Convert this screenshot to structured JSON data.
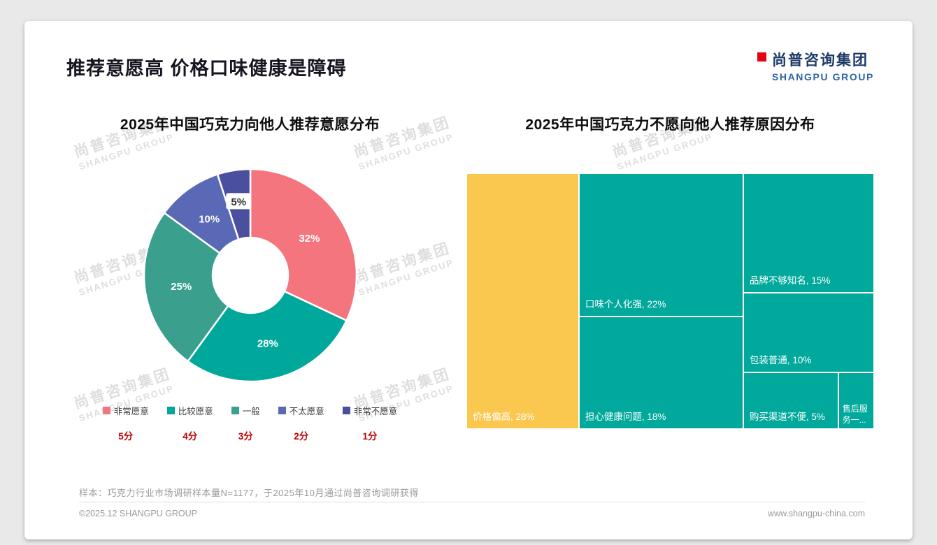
{
  "page": {
    "title": "推荐意愿高 价格口味健康是障碍",
    "logo": {
      "cn": "尚普咨询集团",
      "en": "SHANGPU GROUP"
    },
    "watermark_cn": "尚普咨询集团",
    "watermark_en": "SHANGPU GROUP",
    "footer_note": "样本：巧克力行业市场调研样本量N=1177，于2025年10月通过尚普咨询调研获得",
    "copyright": "©2025.12 SHANGPU GROUP",
    "website": "www.shangpu-china.com"
  },
  "chart_data": [
    {
      "type": "pie",
      "subtype": "donut",
      "title": "2025年中国巧克力向他人推荐意愿分布",
      "unit": "%",
      "legend_position": "bottom",
      "slices": [
        {
          "label": "非常愿意",
          "score": "5分",
          "value": 32,
          "color": "#F5757F"
        },
        {
          "label": "比较愿意",
          "score": "4分",
          "value": 28,
          "color": "#00A89C"
        },
        {
          "label": "一般",
          "score": "3分",
          "value": 25,
          "color": "#3A9F8D"
        },
        {
          "label": "不太愿意",
          "score": "2分",
          "value": 10,
          "color": "#5A69B5"
        },
        {
          "label": "非常不愿意",
          "score": "1分",
          "value": 5,
          "color": "#4A509E"
        }
      ]
    },
    {
      "type": "treemap",
      "title": "2025年中国巧克力不愿向他人推荐原因分布",
      "unit": "%",
      "cells": [
        {
          "label": "价格偏高",
          "value": 28,
          "display": "价格偏高, 28%",
          "color": "#FAC74F"
        },
        {
          "label": "口味个人化强",
          "value": 22,
          "display": "口味个人化强, 22%",
          "color": "#00A99C"
        },
        {
          "label": "担心健康问题",
          "value": 18,
          "display": "担心健康问题, 18%",
          "color": "#00A99C"
        },
        {
          "label": "品牌不够知名",
          "value": 15,
          "display": "品牌不够知名, 15%",
          "color": "#00A99C"
        },
        {
          "label": "包装普通",
          "value": 10,
          "display": "包装普通, 10%",
          "color": "#00A99C"
        },
        {
          "label": "购买渠道不便",
          "value": 5,
          "display": "购买渠道不便, 5%",
          "color": "#00A99C"
        },
        {
          "label": "售后服务一般",
          "value": 2,
          "display": "售后服务一...",
          "color": "#00A99C"
        }
      ]
    }
  ]
}
